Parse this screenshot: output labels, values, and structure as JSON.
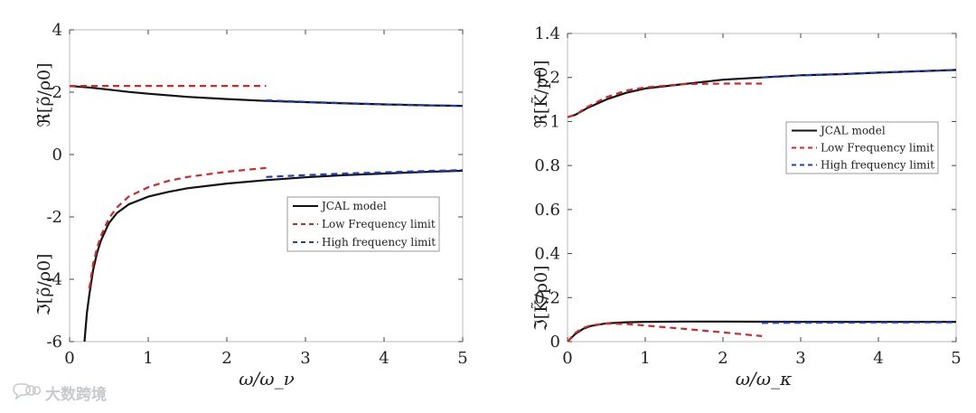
{
  "watermark": {
    "text": "大数跨境",
    "icon": "chat-bubbles-logo-icon"
  },
  "colors": {
    "jcal": "#111111",
    "low": "#d62728",
    "high": "#1f3fbf",
    "axis": "#444444",
    "frame": "#bbbbbb"
  },
  "chart_data": [
    {
      "type": "line",
      "title": "",
      "xlabel": "ω/ω_ν",
      "ylabel_top": "ℜ[ρ̃/ρ0]",
      "ylabel_bottom": "ℑ[ρ̃/ρ0]",
      "xlim": [
        0,
        5
      ],
      "ylim": [
        -6,
        4
      ],
      "xticks": [
        0,
        1,
        2,
        3,
        4,
        5
      ],
      "yticks": [
        -6,
        -4,
        -2,
        0,
        2,
        4
      ],
      "legend": {
        "placement": "center-right",
        "entries": [
          "JCAL model",
          "Low Frequency limit",
          "High frequency limit"
        ]
      },
      "series": [
        {
          "name": "JCAL model",
          "style": "solid",
          "color": "jcal",
          "x": [
            0,
            0.25,
            0.5,
            0.75,
            1,
            1.5,
            2,
            2.5,
            3,
            3.5,
            4,
            4.5,
            5
          ],
          "y": [
            2.2,
            2.15,
            2.08,
            2.01,
            1.95,
            1.85,
            1.78,
            1.72,
            1.68,
            1.64,
            1.61,
            1.58,
            1.56
          ]
        },
        {
          "name": "Low Frequency limit",
          "style": "dashed",
          "color": "low",
          "x": [
            0,
            2.5
          ],
          "y": [
            2.2,
            2.2
          ]
        },
        {
          "name": "High frequency limit",
          "style": "dashed",
          "color": "high",
          "x": [
            2.5,
            3,
            4,
            5
          ],
          "y": [
            1.74,
            1.69,
            1.61,
            1.56
          ]
        },
        {
          "name": "JCAL model",
          "style": "solid",
          "color": "jcal",
          "x": [
            0.19,
            0.22,
            0.25,
            0.3,
            0.35,
            0.4,
            0.5,
            0.6,
            0.75,
            1,
            1.25,
            1.5,
            2,
            2.5,
            3,
            3.5,
            4,
            4.5,
            5
          ],
          "y": [
            -6,
            -5.1,
            -4.5,
            -3.7,
            -3.15,
            -2.75,
            -2.2,
            -1.88,
            -1.6,
            -1.35,
            -1.2,
            -1.08,
            -0.93,
            -0.82,
            -0.73,
            -0.66,
            -0.61,
            -0.56,
            -0.52
          ]
        },
        {
          "name": "Low Frequency limit",
          "style": "dashed",
          "color": "low",
          "x": [
            0.25,
            0.3,
            0.35,
            0.4,
            0.5,
            0.6,
            0.75,
            1,
            1.25,
            1.5,
            2,
            2.5
          ],
          "y": [
            -4.3,
            -3.5,
            -3.0,
            -2.6,
            -2.05,
            -1.7,
            -1.35,
            -1.05,
            -0.85,
            -0.72,
            -0.55,
            -0.43
          ]
        },
        {
          "name": "High frequency limit",
          "style": "dashed",
          "color": "high",
          "x": [
            2.5,
            3,
            3.5,
            4,
            4.5,
            5
          ],
          "y": [
            -0.72,
            -0.66,
            -0.61,
            -0.57,
            -0.53,
            -0.5
          ]
        }
      ]
    },
    {
      "type": "line",
      "title": "",
      "xlabel": "ω/ω_κ",
      "ylabel_top": "ℜ[K̃/p0]",
      "ylabel_bottom": "ℑ[K̃/p0]",
      "xlim": [
        0,
        5
      ],
      "ylim": [
        0,
        1.4
      ],
      "xticks": [
        0,
        1,
        2,
        3,
        4,
        5
      ],
      "yticks": [
        0,
        0.2,
        0.4,
        0.6,
        0.8,
        1,
        1.2,
        1.4
      ],
      "legend": {
        "placement": "center-right",
        "entries": [
          "JCAL model",
          "Low Frequency limit",
          "High frequency limit"
        ]
      },
      "series": [
        {
          "name": "JCAL model",
          "style": "solid",
          "color": "jcal",
          "x": [
            0,
            0.1,
            0.25,
            0.5,
            0.75,
            1,
            1.5,
            2,
            2.5,
            3,
            3.5,
            4,
            4.5,
            5
          ],
          "y": [
            1.02,
            1.03,
            1.06,
            1.1,
            1.13,
            1.15,
            1.17,
            1.19,
            1.2,
            1.21,
            1.215,
            1.222,
            1.228,
            1.234
          ]
        },
        {
          "name": "Low Frequency limit",
          "style": "dashed",
          "color": "low",
          "x": [
            0,
            0.1,
            0.25,
            0.5,
            0.75,
            1,
            1.5,
            2,
            2.5
          ],
          "y": [
            1.02,
            1.03,
            1.065,
            1.11,
            1.14,
            1.155,
            1.17,
            1.172,
            1.172
          ]
        },
        {
          "name": "High frequency limit",
          "style": "dashed",
          "color": "high",
          "x": [
            2.5,
            3,
            3.5,
            4,
            4.5,
            5
          ],
          "y": [
            1.2,
            1.21,
            1.215,
            1.222,
            1.228,
            1.234
          ]
        },
        {
          "name": "JCAL model",
          "style": "solid",
          "color": "jcal",
          "x": [
            0,
            0.1,
            0.2,
            0.3,
            0.5,
            0.75,
            1,
            1.5,
            2,
            3,
            4,
            5
          ],
          "y": [
            0,
            0.035,
            0.058,
            0.071,
            0.083,
            0.088,
            0.09,
            0.091,
            0.091,
            0.09,
            0.09,
            0.09
          ]
        },
        {
          "name": "Low Frequency limit",
          "style": "dashed",
          "color": "low",
          "x": [
            0,
            0.1,
            0.2,
            0.3,
            0.5,
            0.75,
            1,
            1.5,
            2,
            2.5
          ],
          "y": [
            0,
            0.04,
            0.062,
            0.074,
            0.082,
            0.08,
            0.073,
            0.058,
            0.042,
            0.025
          ]
        },
        {
          "name": "High frequency limit",
          "style": "dashed",
          "color": "high",
          "x": [
            2.5,
            3,
            4,
            5
          ],
          "y": [
            0.085,
            0.086,
            0.087,
            0.088
          ]
        }
      ]
    }
  ]
}
